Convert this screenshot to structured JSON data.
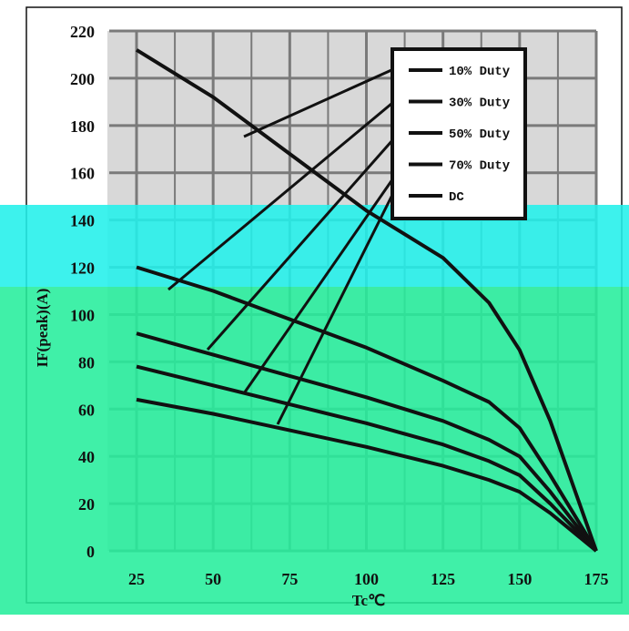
{
  "colors": {
    "plot_bg": "#d8d8d8",
    "grid": "#7a7a7a",
    "curve": "#111111",
    "overlay_cyan": "#22f0ea",
    "overlay_green": "#25ee9c"
  },
  "chart_data": {
    "type": "line",
    "title": "",
    "xlabel": "Tc℃",
    "ylabel": "IF(peak)(A)",
    "xlim": [
      25,
      175
    ],
    "ylim": [
      0,
      220
    ],
    "xticks": [
      "25",
      "50",
      "75",
      "100",
      "125",
      "150",
      "175"
    ],
    "yticks": [
      "0",
      "20",
      "40",
      "60",
      "80",
      "100",
      "120",
      "140",
      "160",
      "180",
      "200",
      "220"
    ],
    "grid": true,
    "legend_position": "top-right",
    "series": [
      {
        "name": "10% Duty",
        "points": [
          [
            25,
            212
          ],
          [
            50,
            192
          ],
          [
            75,
            168
          ],
          [
            100,
            144
          ],
          [
            125,
            124
          ],
          [
            140,
            105
          ],
          [
            150,
            85
          ],
          [
            160,
            55
          ],
          [
            175,
            0
          ]
        ]
      },
      {
        "name": "30% Duty",
        "points": [
          [
            25,
            120
          ],
          [
            50,
            110
          ],
          [
            75,
            98
          ],
          [
            100,
            86
          ],
          [
            125,
            72
          ],
          [
            140,
            63
          ],
          [
            150,
            52
          ],
          [
            160,
            32
          ],
          [
            175,
            0
          ]
        ]
      },
      {
        "name": "50% Duty",
        "points": [
          [
            25,
            92
          ],
          [
            50,
            83
          ],
          [
            75,
            74
          ],
          [
            100,
            65
          ],
          [
            125,
            55
          ],
          [
            140,
            47
          ],
          [
            150,
            40
          ],
          [
            160,
            25
          ],
          [
            175,
            0
          ]
        ]
      },
      {
        "name": "70% Duty",
        "points": [
          [
            25,
            78
          ],
          [
            50,
            70
          ],
          [
            75,
            62
          ],
          [
            100,
            54
          ],
          [
            125,
            45
          ],
          [
            140,
            38
          ],
          [
            150,
            32
          ],
          [
            160,
            20
          ],
          [
            175,
            0
          ]
        ]
      },
      {
        "name": "DC",
        "points": [
          [
            25,
            64
          ],
          [
            50,
            58
          ],
          [
            75,
            51
          ],
          [
            100,
            44
          ],
          [
            125,
            36
          ],
          [
            140,
            30
          ],
          [
            150,
            25
          ],
          [
            160,
            16
          ],
          [
            175,
            0
          ]
        ]
      }
    ]
  }
}
